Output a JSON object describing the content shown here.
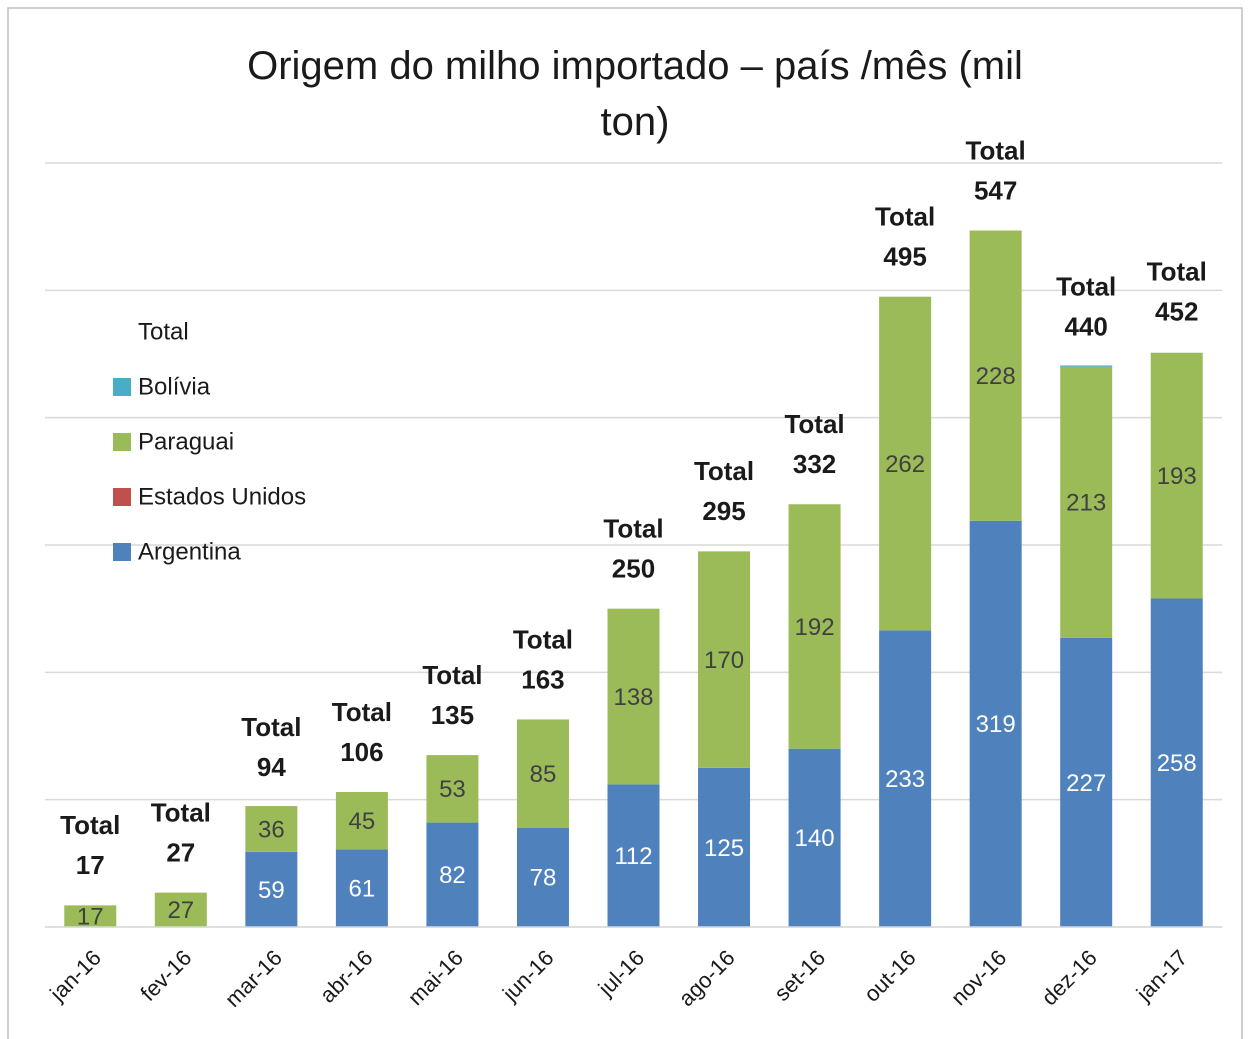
{
  "chart_data": {
    "type": "stacked_bar",
    "title": "Origem do milho importado – país /mês (mil ton)",
    "categories": [
      "jan-16",
      "fev-16",
      "mar-16",
      "abr-16",
      "mai-16",
      "jun-16",
      "jul-16",
      "ago-16",
      "set-16",
      "out-16",
      "nov-16",
      "dez-16",
      "jan-17"
    ],
    "series": [
      {
        "name": "Argentina",
        "color": "#4f81bd",
        "label_color": "#ffffff",
        "values": [
          null,
          null,
          59,
          61,
          82,
          78,
          112,
          125,
          140,
          233,
          319,
          227,
          258
        ]
      },
      {
        "name": "Estados Unidos",
        "color": "#c0504d",
        "values": [
          null,
          null,
          null,
          null,
          null,
          null,
          null,
          null,
          null,
          null,
          null,
          null,
          null
        ]
      },
      {
        "name": "Paraguai",
        "color": "#9bbb59",
        "label_color": "#404040",
        "values": [
          17,
          27,
          36,
          45,
          53,
          85,
          138,
          170,
          192,
          262,
          228,
          213,
          193
        ]
      },
      {
        "name": "Bolívia",
        "color": "#4bacc6",
        "values": [
          null,
          null,
          null,
          null,
          null,
          null,
          null,
          null,
          null,
          null,
          null,
          1,
          null
        ]
      },
      {
        "name": "Total",
        "values": [
          17,
          27,
          94,
          106,
          135,
          163,
          250,
          295,
          332,
          495,
          547,
          440,
          452
        ]
      }
    ],
    "ylim": [
      0,
      600
    ],
    "yticks": [
      0,
      100,
      200,
      300,
      400,
      500,
      600
    ],
    "grid": true,
    "legend": "left"
  }
}
